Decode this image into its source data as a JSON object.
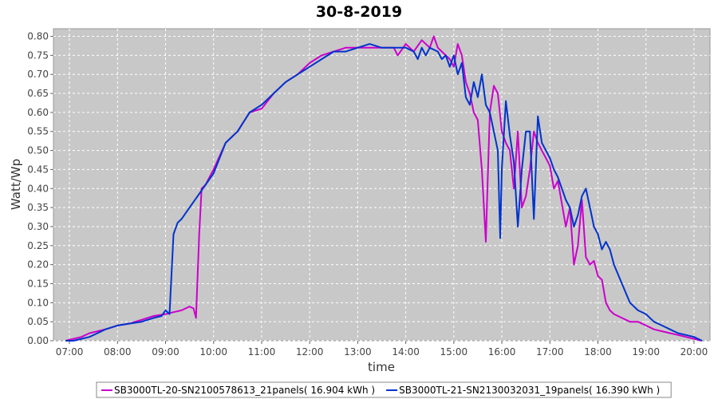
{
  "chart_data": {
    "type": "line",
    "title": "30-8-2019",
    "xlabel": "time",
    "ylabel": "Watt/Wp",
    "xlim": [
      "06:40",
      "20:20"
    ],
    "ylim": [
      0,
      0.82
    ],
    "x_ticks": [
      "07:00",
      "08:00",
      "09:00",
      "10:00",
      "11:00",
      "12:00",
      "13:00",
      "14:00",
      "15:00",
      "16:00",
      "17:00",
      "18:00",
      "19:00",
      "20:00"
    ],
    "y_ticks": [
      "0.00",
      "0.05",
      "0.10",
      "0.15",
      "0.20",
      "0.25",
      "0.30",
      "0.35",
      "0.40",
      "0.45",
      "0.50",
      "0.55",
      "0.60",
      "0.65",
      "0.70",
      "0.75",
      "0.80"
    ],
    "grid": true,
    "legend_placement": "bottom",
    "plot_background": "#c8c8c8",
    "series": [
      {
        "name": "SB3000TL-20-SN2100578613_21panels( 16.904 kWh )",
        "color": "#cc00cc",
        "x": [
          "06:55",
          "07:05",
          "07:15",
          "07:25",
          "07:35",
          "07:45",
          "08:00",
          "08:15",
          "08:30",
          "08:45",
          "09:00",
          "09:10",
          "09:20",
          "09:30",
          "09:35",
          "09:38",
          "09:42",
          "09:45",
          "09:50",
          "10:00",
          "10:15",
          "10:30",
          "10:45",
          "11:00",
          "11:15",
          "11:30",
          "11:45",
          "12:00",
          "12:15",
          "12:30",
          "12:45",
          "13:00",
          "13:15",
          "13:30",
          "13:45",
          "13:50",
          "14:00",
          "14:10",
          "14:20",
          "14:30",
          "14:35",
          "14:40",
          "14:45",
          "14:50",
          "14:55",
          "15:00",
          "15:05",
          "15:10",
          "15:15",
          "15:20",
          "15:25",
          "15:30",
          "15:35",
          "15:40",
          "15:42",
          "15:45",
          "15:50",
          "15:55",
          "16:00",
          "16:05",
          "16:10",
          "16:15",
          "16:20",
          "16:25",
          "16:30",
          "16:35",
          "16:40",
          "16:45",
          "16:50",
          "16:55",
          "17:00",
          "17:05",
          "17:10",
          "17:15",
          "17:20",
          "17:25",
          "17:30",
          "17:35",
          "17:40",
          "17:45",
          "17:50",
          "17:55",
          "18:00",
          "18:05",
          "18:10",
          "18:15",
          "18:20",
          "18:30",
          "18:40",
          "18:50",
          "19:00",
          "19:10",
          "19:20",
          "19:30",
          "19:40",
          "19:50",
          "20:00",
          "20:10"
        ],
        "y": [
          0.0,
          0.005,
          0.01,
          0.02,
          0.025,
          0.03,
          0.04,
          0.045,
          0.055,
          0.065,
          0.07,
          0.075,
          0.08,
          0.09,
          0.085,
          0.06,
          0.28,
          0.4,
          0.41,
          0.45,
          0.52,
          0.55,
          0.6,
          0.61,
          0.65,
          0.68,
          0.7,
          0.73,
          0.75,
          0.76,
          0.77,
          0.77,
          0.77,
          0.77,
          0.77,
          0.75,
          0.78,
          0.76,
          0.79,
          0.77,
          0.8,
          0.77,
          0.76,
          0.75,
          0.74,
          0.72,
          0.78,
          0.75,
          0.68,
          0.65,
          0.6,
          0.58,
          0.45,
          0.26,
          0.4,
          0.6,
          0.67,
          0.65,
          0.55,
          0.52,
          0.5,
          0.4,
          0.55,
          0.35,
          0.38,
          0.45,
          0.55,
          0.52,
          0.5,
          0.48,
          0.46,
          0.4,
          0.42,
          0.36,
          0.3,
          0.35,
          0.2,
          0.25,
          0.37,
          0.22,
          0.2,
          0.21,
          0.17,
          0.16,
          0.1,
          0.08,
          0.07,
          0.06,
          0.05,
          0.05,
          0.04,
          0.03,
          0.025,
          0.02,
          0.015,
          0.01,
          0.005,
          0.0
        ]
      },
      {
        "name": "SB3000TL-21-SN2130032031_19panels( 16.390 kWh )",
        "color": "#0033cc",
        "x": [
          "06:55",
          "07:05",
          "07:15",
          "07:25",
          "07:35",
          "07:45",
          "08:00",
          "08:15",
          "08:30",
          "08:45",
          "08:55",
          "09:00",
          "09:05",
          "09:10",
          "09:15",
          "09:20",
          "09:30",
          "09:40",
          "09:50",
          "10:00",
          "10:15",
          "10:30",
          "10:45",
          "11:00",
          "11:15",
          "11:30",
          "11:45",
          "12:00",
          "12:15",
          "12:30",
          "12:45",
          "13:00",
          "13:15",
          "13:30",
          "13:45",
          "14:00",
          "14:10",
          "14:15",
          "14:20",
          "14:25",
          "14:30",
          "14:40",
          "14:45",
          "14:50",
          "14:55",
          "15:00",
          "15:05",
          "15:10",
          "15:15",
          "15:20",
          "15:25",
          "15:30",
          "15:35",
          "15:40",
          "15:45",
          "15:50",
          "15:55",
          "15:58",
          "16:00",
          "16:05",
          "16:10",
          "16:15",
          "16:20",
          "16:25",
          "16:30",
          "16:35",
          "16:40",
          "16:45",
          "16:50",
          "16:55",
          "17:00",
          "17:05",
          "17:10",
          "17:15",
          "17:20",
          "17:25",
          "17:30",
          "17:35",
          "17:40",
          "17:45",
          "17:50",
          "17:55",
          "18:00",
          "18:05",
          "18:10",
          "18:15",
          "18:20",
          "18:30",
          "18:40",
          "18:50",
          "19:00",
          "19:10",
          "19:20",
          "19:30",
          "19:40",
          "19:50",
          "20:00",
          "20:10"
        ],
        "y": [
          0.0,
          0.0,
          0.005,
          0.01,
          0.02,
          0.03,
          0.04,
          0.045,
          0.05,
          0.06,
          0.065,
          0.08,
          0.07,
          0.28,
          0.31,
          0.32,
          0.35,
          0.38,
          0.41,
          0.44,
          0.52,
          0.55,
          0.6,
          0.62,
          0.65,
          0.68,
          0.7,
          0.72,
          0.74,
          0.76,
          0.76,
          0.77,
          0.78,
          0.77,
          0.77,
          0.77,
          0.76,
          0.74,
          0.77,
          0.75,
          0.77,
          0.76,
          0.74,
          0.75,
          0.72,
          0.75,
          0.7,
          0.73,
          0.64,
          0.62,
          0.68,
          0.64,
          0.7,
          0.62,
          0.6,
          0.55,
          0.5,
          0.27,
          0.45,
          0.63,
          0.54,
          0.47,
          0.3,
          0.45,
          0.55,
          0.55,
          0.32,
          0.59,
          0.52,
          0.5,
          0.48,
          0.45,
          0.43,
          0.4,
          0.37,
          0.35,
          0.3,
          0.33,
          0.38,
          0.4,
          0.35,
          0.3,
          0.28,
          0.24,
          0.26,
          0.24,
          0.2,
          0.15,
          0.1,
          0.08,
          0.07,
          0.05,
          0.04,
          0.03,
          0.02,
          0.015,
          0.01,
          0.0
        ]
      }
    ]
  }
}
